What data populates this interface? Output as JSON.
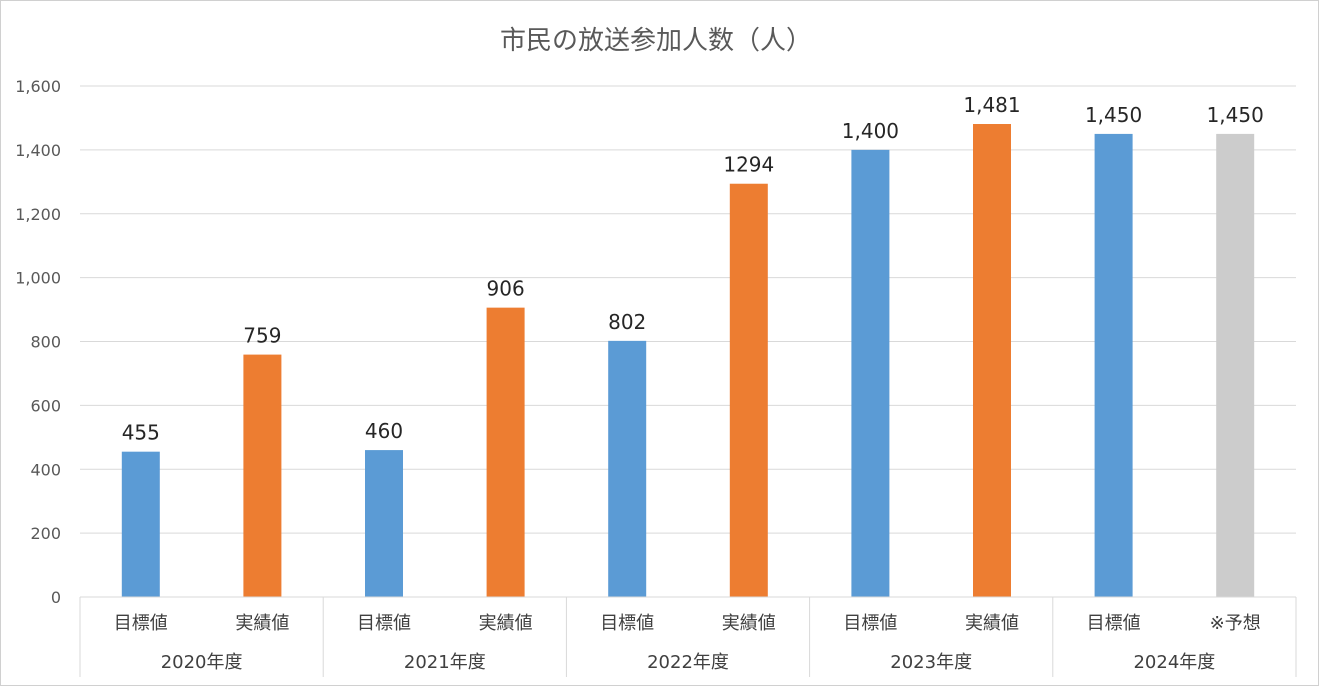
{
  "chart_data": {
    "type": "bar",
    "title": "市民の放送参加人数（人）",
    "groups": [
      "2020年度",
      "2021年度",
      "2022年度",
      "2023年度",
      "2024年度"
    ],
    "bars": [
      {
        "group": "2020年度",
        "category": "目標値",
        "value": 455,
        "label": "455",
        "color": "#5B9BD5"
      },
      {
        "group": "2020年度",
        "category": "実績値",
        "value": 759,
        "label": "759",
        "color": "#ED7D31"
      },
      {
        "group": "2021年度",
        "category": "目標値",
        "value": 460,
        "label": "460",
        "color": "#5B9BD5"
      },
      {
        "group": "2021年度",
        "category": "実績値",
        "value": 906,
        "label": "906",
        "color": "#ED7D31"
      },
      {
        "group": "2022年度",
        "category": "目標値",
        "value": 802,
        "label": "802",
        "color": "#5B9BD5"
      },
      {
        "group": "2022年度",
        "category": "実績値",
        "value": 1294,
        "label": "1294",
        "color": "#ED7D31"
      },
      {
        "group": "2023年度",
        "category": "目標値",
        "value": 1400,
        "label": "1,400",
        "color": "#5B9BD5"
      },
      {
        "group": "2023年度",
        "category": "実績値",
        "value": 1481,
        "label": "1,481",
        "color": "#ED7D31"
      },
      {
        "group": "2024年度",
        "category": "目標値",
        "value": 1450,
        "label": "1,450",
        "color": "#5B9BD5"
      },
      {
        "group": "2024年度",
        "category": "※予想",
        "value": 1450,
        "label": "1,450",
        "color": "#CCCCCC"
      }
    ],
    "ylim": [
      0,
      1600
    ],
    "yticks": [
      0,
      200,
      400,
      600,
      800,
      1000,
      1200,
      1400,
      1600
    ],
    "ytick_labels": [
      "0",
      "200",
      "400",
      "600",
      "800",
      "1,000",
      "1,200",
      "1,400",
      "1,600"
    ],
    "grid": true,
    "legend": "none"
  }
}
